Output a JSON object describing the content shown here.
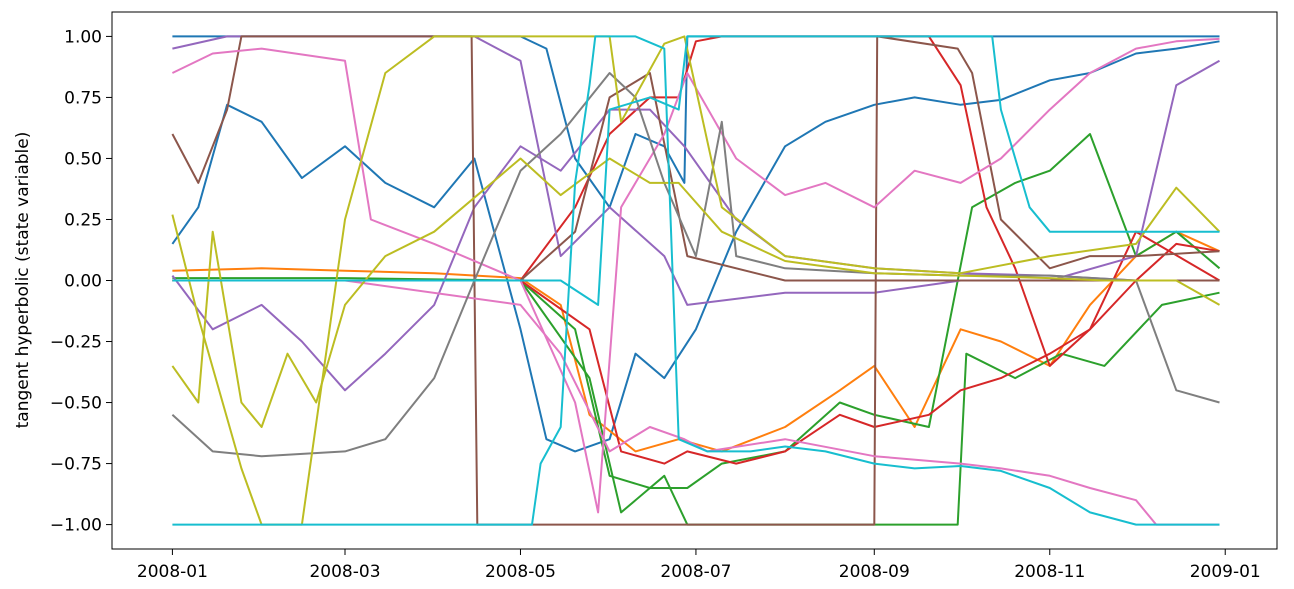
{
  "chart_data": {
    "type": "line",
    "xlabel": "",
    "ylabel": "tangent hyperbolic (state variable)",
    "xlim": [
      "2007-12-11",
      "2009-01-19"
    ],
    "ylim": [
      -1.1,
      1.1
    ],
    "grid": false,
    "legend": "none",
    "xticks": [
      {
        "date": "2008-01-01",
        "label": "2008-01"
      },
      {
        "date": "2008-03-01",
        "label": "2008-03"
      },
      {
        "date": "2008-05-01",
        "label": "2008-05"
      },
      {
        "date": "2008-07-01",
        "label": "2008-07"
      },
      {
        "date": "2008-09-01",
        "label": "2008-09"
      },
      {
        "date": "2008-11-01",
        "label": "2008-11"
      },
      {
        "date": "2009-01-01",
        "label": "2009-01"
      }
    ],
    "yticks": [
      {
        "value": 1.0,
        "label": "1.00"
      },
      {
        "value": 0.75,
        "label": "0.75"
      },
      {
        "value": 0.5,
        "label": "0.50"
      },
      {
        "value": 0.25,
        "label": "0.25"
      },
      {
        "value": 0.0,
        "label": "0.00"
      },
      {
        "value": -0.25,
        "label": "−0.25"
      },
      {
        "value": -0.5,
        "label": "−0.50"
      },
      {
        "value": -0.75,
        "label": "−0.75"
      },
      {
        "value": -1.0,
        "label": "−1.00"
      }
    ],
    "series": [
      {
        "color": "#1f77b4",
        "x": [
          "2008-01-01",
          "2008-01-10",
          "2008-01-20",
          "2008-02-01",
          "2008-02-15",
          "2008-03-01",
          "2008-03-15",
          "2008-04-01",
          "2008-04-15",
          "2008-05-01",
          "2008-05-10",
          "2008-05-20",
          "2008-06-01",
          "2008-06-10",
          "2008-06-20",
          "2008-07-01",
          "2008-07-15",
          "2008-08-01",
          "2008-08-15",
          "2008-09-01",
          "2008-09-15",
          "2008-10-01",
          "2008-10-15",
          "2008-11-01",
          "2008-11-15",
          "2008-12-01",
          "2008-12-15",
          "2008-12-30"
        ],
        "y": [
          0.15,
          0.3,
          0.72,
          0.65,
          0.42,
          0.55,
          0.4,
          0.3,
          0.5,
          -0.2,
          -0.65,
          -0.7,
          -0.65,
          -0.3,
          -0.4,
          -0.2,
          0.2,
          0.55,
          0.65,
          0.72,
          0.75,
          0.72,
          0.74,
          0.82,
          0.85,
          0.93,
          0.95,
          0.98
        ]
      },
      {
        "color": "#1f77b4",
        "x": [
          "2008-01-01",
          "2008-01-15",
          "2008-03-01",
          "2008-05-01",
          "2008-05-10",
          "2008-05-20",
          "2008-06-01",
          "2008-06-10",
          "2008-06-20",
          "2008-06-27",
          "2008-06-28",
          "2008-12-30"
        ],
        "y": [
          1.0,
          1.0,
          1.0,
          1.0,
          0.95,
          0.5,
          0.3,
          0.6,
          0.55,
          0.4,
          1.0,
          1.0
        ]
      },
      {
        "color": "#ff7f0e",
        "x": [
          "2008-01-01",
          "2008-02-01",
          "2008-03-01",
          "2008-04-01",
          "2008-05-01",
          "2008-05-15",
          "2008-05-25",
          "2008-06-10",
          "2008-06-25",
          "2008-07-10",
          "2008-08-01",
          "2008-08-20",
          "2008-09-01",
          "2008-09-15",
          "2008-10-01",
          "2008-10-15",
          "2008-11-01",
          "2008-11-15",
          "2008-12-01",
          "2008-12-15",
          "2008-12-30"
        ],
        "y": [
          0.04,
          0.05,
          0.04,
          0.03,
          0.01,
          -0.1,
          -0.55,
          -0.7,
          -0.65,
          -0.7,
          -0.6,
          -0.45,
          -0.35,
          -0.6,
          -0.2,
          -0.25,
          -0.35,
          -0.1,
          0.1,
          0.2,
          0.12
        ]
      },
      {
        "color": "#2ca02c",
        "x": [
          "2008-01-01",
          "2008-03-01",
          "2008-05-01",
          "2008-05-20",
          "2008-06-01",
          "2008-06-15",
          "2008-06-28",
          "2008-07-10",
          "2008-08-01",
          "2008-08-20",
          "2008-09-01",
          "2008-09-20",
          "2008-10-05",
          "2008-10-20",
          "2008-11-01",
          "2008-11-15",
          "2008-12-01",
          "2008-12-15",
          "2008-12-30"
        ],
        "y": [
          0.01,
          0.01,
          0.0,
          -0.2,
          -0.8,
          -0.85,
          -0.85,
          -0.75,
          -0.7,
          -0.5,
          -0.55,
          -0.6,
          0.3,
          0.4,
          0.45,
          0.6,
          0.1,
          0.2,
          0.05
        ]
      },
      {
        "color": "#2ca02c",
        "x": [
          "2008-01-01",
          "2008-05-01",
          "2008-05-25",
          "2008-06-05",
          "2008-06-20",
          "2008-06-28",
          "2008-09-15",
          "2008-09-30",
          "2008-10-03",
          "2008-10-20",
          "2008-11-05",
          "2008-11-20",
          "2008-12-10",
          "2008-12-30"
        ],
        "y": [
          0.0,
          0.0,
          -0.4,
          -0.95,
          -0.8,
          -1.0,
          -1.0,
          -1.0,
          -0.3,
          -0.4,
          -0.3,
          -0.35,
          -0.1,
          -0.05
        ]
      },
      {
        "color": "#d62728",
        "x": [
          "2008-01-01",
          "2008-03-01",
          "2008-05-01",
          "2008-05-25",
          "2008-06-05",
          "2008-06-20",
          "2008-06-28",
          "2008-07-15",
          "2008-08-01",
          "2008-08-20",
          "2008-09-01",
          "2008-09-20",
          "2008-10-01",
          "2008-10-15",
          "2008-11-01",
          "2008-11-15",
          "2008-12-01",
          "2008-12-15",
          "2008-12-30"
        ],
        "y": [
          0.0,
          0.0,
          0.0,
          -0.2,
          -0.7,
          -0.75,
          -0.7,
          -0.75,
          -0.7,
          -0.55,
          -0.6,
          -0.55,
          -0.45,
          -0.4,
          -0.3,
          -0.2,
          0.0,
          0.15,
          0.12
        ]
      },
      {
        "color": "#d62728",
        "x": [
          "2008-01-01",
          "2008-05-01",
          "2008-05-20",
          "2008-06-01",
          "2008-06-15",
          "2008-06-25",
          "2008-07-01",
          "2008-07-10",
          "2008-08-01",
          "2008-09-01",
          "2008-09-20",
          "2008-10-01",
          "2008-10-10",
          "2008-10-20",
          "2008-11-01",
          "2008-11-15",
          "2008-12-01",
          "2008-12-30"
        ],
        "y": [
          0.0,
          0.0,
          0.3,
          0.6,
          0.75,
          0.75,
          0.98,
          1.0,
          1.0,
          1.0,
          1.0,
          0.8,
          0.3,
          0.05,
          -0.35,
          -0.2,
          0.2,
          0.0
        ]
      },
      {
        "color": "#9467bd",
        "x": [
          "2008-01-01",
          "2008-01-15",
          "2008-02-01",
          "2008-02-15",
          "2008-03-01",
          "2008-03-15",
          "2008-04-01",
          "2008-04-15",
          "2008-05-01",
          "2008-05-15",
          "2008-06-01",
          "2008-06-15",
          "2008-06-27",
          "2008-07-15",
          "2008-08-01",
          "2008-09-01",
          "2008-10-01",
          "2008-11-01",
          "2008-12-01",
          "2008-12-15",
          "2008-12-30"
        ],
        "y": [
          0.02,
          -0.2,
          -0.1,
          -0.25,
          -0.45,
          -0.3,
          -0.1,
          0.3,
          0.55,
          0.45,
          0.7,
          0.7,
          0.55,
          0.25,
          0.1,
          0.05,
          0.03,
          0.02,
          0.0,
          0.0,
          0.0
        ]
      },
      {
        "color": "#9467bd",
        "x": [
          "2008-01-01",
          "2008-01-20",
          "2008-03-01",
          "2008-04-15",
          "2008-05-01",
          "2008-05-15",
          "2008-06-01",
          "2008-06-20",
          "2008-06-28",
          "2008-08-01",
          "2008-09-01",
          "2008-10-01",
          "2008-11-01",
          "2008-12-01",
          "2008-12-15",
          "2008-12-30"
        ],
        "y": [
          0.95,
          1.0,
          1.0,
          1.0,
          0.9,
          0.1,
          0.3,
          0.1,
          -0.1,
          -0.05,
          -0.05,
          0.0,
          0.0,
          0.1,
          0.8,
          0.9
        ]
      },
      {
        "color": "#8c564b",
        "x": [
          "2008-01-01",
          "2008-01-10",
          "2008-01-20",
          "2008-01-25",
          "2008-02-01",
          "2008-03-01",
          "2008-04-01",
          "2008-04-14",
          "2008-04-16",
          "2008-05-01",
          "2008-05-15",
          "2008-06-01",
          "2008-06-15",
          "2008-06-28",
          "2008-08-01",
          "2008-09-01",
          "2008-09-02",
          "2008-09-30",
          "2008-10-05",
          "2008-10-15",
          "2008-11-01",
          "2008-11-15",
          "2008-12-01",
          "2008-12-30"
        ],
        "y": [
          0.6,
          0.4,
          0.7,
          1.0,
          1.0,
          1.0,
          1.0,
          1.0,
          -1.0,
          -1.0,
          -1.0,
          -1.0,
          -1.0,
          -1.0,
          -1.0,
          -1.0,
          1.0,
          0.95,
          0.85,
          0.25,
          0.05,
          0.1,
          0.1,
          0.12
        ]
      },
      {
        "color": "#8c564b",
        "x": [
          "2008-01-01",
          "2008-03-01",
          "2008-05-01",
          "2008-05-20",
          "2008-06-01",
          "2008-06-15",
          "2008-06-28",
          "2008-08-01",
          "2008-09-01",
          "2008-10-01",
          "2008-11-01",
          "2008-12-01",
          "2008-12-30"
        ],
        "y": [
          0.0,
          0.0,
          0.0,
          0.2,
          0.75,
          0.85,
          0.1,
          0.0,
          0.0,
          0.0,
          0.0,
          0.0,
          0.0
        ]
      },
      {
        "color": "#e377c2",
        "x": [
          "2008-01-01",
          "2008-01-15",
          "2008-02-01",
          "2008-03-01",
          "2008-03-10",
          "2008-04-01",
          "2008-05-01",
          "2008-05-20",
          "2008-05-28",
          "2008-06-05",
          "2008-06-20",
          "2008-06-28",
          "2008-07-15",
          "2008-08-01",
          "2008-08-15",
          "2008-09-01",
          "2008-09-15",
          "2008-10-01",
          "2008-10-15",
          "2008-11-01",
          "2008-11-15",
          "2008-12-01",
          "2008-12-15",
          "2008-12-30"
        ],
        "y": [
          0.85,
          0.93,
          0.95,
          0.9,
          0.25,
          0.15,
          0.0,
          -0.5,
          -0.95,
          0.3,
          0.6,
          0.85,
          0.5,
          0.35,
          0.4,
          0.3,
          0.45,
          0.4,
          0.5,
          0.7,
          0.85,
          0.95,
          0.98,
          0.99
        ]
      },
      {
        "color": "#e377c2",
        "x": [
          "2008-01-01",
          "2008-03-01",
          "2008-05-01",
          "2008-05-15",
          "2008-06-01",
          "2008-06-15",
          "2008-06-27",
          "2008-07-05",
          "2008-08-01",
          "2008-09-01",
          "2008-10-01",
          "2008-10-15",
          "2008-11-01",
          "2008-11-15",
          "2008-12-01",
          "2008-12-08",
          "2008-12-30"
        ],
        "y": [
          0.0,
          0.0,
          -0.1,
          -0.3,
          -0.7,
          -0.6,
          -0.65,
          -0.7,
          -0.65,
          -0.72,
          -0.75,
          -0.77,
          -0.8,
          -0.85,
          -0.9,
          -1.0,
          -1.0
        ]
      },
      {
        "color": "#7f7f7f",
        "x": [
          "2008-01-01",
          "2008-01-15",
          "2008-02-01",
          "2008-03-01",
          "2008-03-15",
          "2008-04-01",
          "2008-04-15",
          "2008-05-01",
          "2008-05-15",
          "2008-06-01",
          "2008-06-10",
          "2008-06-20",
          "2008-07-01",
          "2008-07-10",
          "2008-07-15",
          "2008-08-01",
          "2008-09-01",
          "2008-10-01",
          "2008-11-01",
          "2008-12-01",
          "2008-12-15",
          "2008-12-30"
        ],
        "y": [
          -0.55,
          -0.7,
          -0.72,
          -0.7,
          -0.65,
          -0.4,
          0.0,
          0.45,
          0.6,
          0.85,
          0.75,
          0.4,
          0.1,
          0.65,
          0.1,
          0.05,
          0.03,
          0.02,
          0.02,
          0.0,
          -0.45,
          -0.5
        ]
      },
      {
        "color": "#bcbd22",
        "x": [
          "2008-01-01",
          "2008-01-10",
          "2008-01-15",
          "2008-01-25",
          "2008-02-01",
          "2008-02-10",
          "2008-02-20",
          "2008-03-01",
          "2008-03-15",
          "2008-04-01",
          "2008-05-01",
          "2008-05-15",
          "2008-06-01",
          "2008-06-15",
          "2008-06-25",
          "2008-07-10",
          "2008-08-01",
          "2008-09-01",
          "2008-10-01",
          "2008-11-01",
          "2008-11-20",
          "2008-12-01",
          "2008-12-15",
          "2008-12-30"
        ],
        "y": [
          -0.35,
          -0.5,
          0.2,
          -0.5,
          -0.6,
          -0.3,
          -0.5,
          -0.1,
          0.1,
          0.2,
          0.5,
          0.35,
          0.5,
          0.4,
          0.4,
          0.2,
          0.08,
          0.03,
          0.02,
          0.01,
          0.0,
          0.0,
          0.0,
          -0.1
        ]
      },
      {
        "color": "#bcbd22",
        "x": [
          "2008-01-01",
          "2008-01-10",
          "2008-01-25",
          "2008-02-01",
          "2008-02-15",
          "2008-03-01",
          "2008-03-15",
          "2008-04-01",
          "2008-05-01",
          "2008-05-10",
          "2008-05-20",
          "2008-06-01",
          "2008-06-05",
          "2008-06-20",
          "2008-06-27",
          "2008-07-10",
          "2008-08-01",
          "2008-09-01",
          "2008-10-01",
          "2008-11-01",
          "2008-12-01",
          "2008-12-15",
          "2008-12-30"
        ],
        "y": [
          0.27,
          -0.15,
          -0.77,
          -1.0,
          -1.0,
          0.25,
          0.85,
          1.0,
          1.0,
          1.0,
          1.0,
          1.0,
          0.65,
          0.97,
          1.0,
          0.3,
          0.1,
          0.05,
          0.03,
          0.1,
          0.15,
          0.38,
          0.2
        ]
      },
      {
        "color": "#17becf",
        "x": [
          "2008-01-01",
          "2008-03-01",
          "2008-05-01",
          "2008-05-05",
          "2008-05-08",
          "2008-05-15",
          "2008-05-20",
          "2008-05-25",
          "2008-05-27",
          "2008-06-10",
          "2008-06-20",
          "2008-06-25",
          "2008-07-05",
          "2008-07-20",
          "2008-08-01",
          "2008-08-15",
          "2008-09-01",
          "2008-09-15",
          "2008-10-01",
          "2008-10-15",
          "2008-11-01",
          "2008-11-15",
          "2008-12-01",
          "2008-12-15",
          "2008-12-30"
        ],
        "y": [
          -1.0,
          -1.0,
          -1.0,
          -1.0,
          -0.75,
          -0.6,
          0.4,
          0.8,
          1.0,
          1.0,
          0.95,
          -0.65,
          -0.7,
          -0.7,
          -0.68,
          -0.7,
          -0.75,
          -0.77,
          -0.76,
          -0.78,
          -0.85,
          -0.95,
          -1.0,
          -1.0,
          -1.0
        ]
      },
      {
        "color": "#17becf",
        "x": [
          "2008-01-01",
          "2008-03-01",
          "2008-05-01",
          "2008-05-15",
          "2008-05-28",
          "2008-06-01",
          "2008-06-15",
          "2008-06-25",
          "2008-06-28",
          "2008-09-01",
          "2008-10-01",
          "2008-10-12",
          "2008-10-15",
          "2008-10-25",
          "2008-11-01",
          "2008-12-01",
          "2008-12-30"
        ],
        "y": [
          0.0,
          0.0,
          0.0,
          0.0,
          -0.1,
          0.7,
          0.75,
          0.7,
          1.0,
          1.0,
          1.0,
          1.0,
          0.7,
          0.3,
          0.2,
          0.2,
          0.2
        ]
      }
    ]
  }
}
